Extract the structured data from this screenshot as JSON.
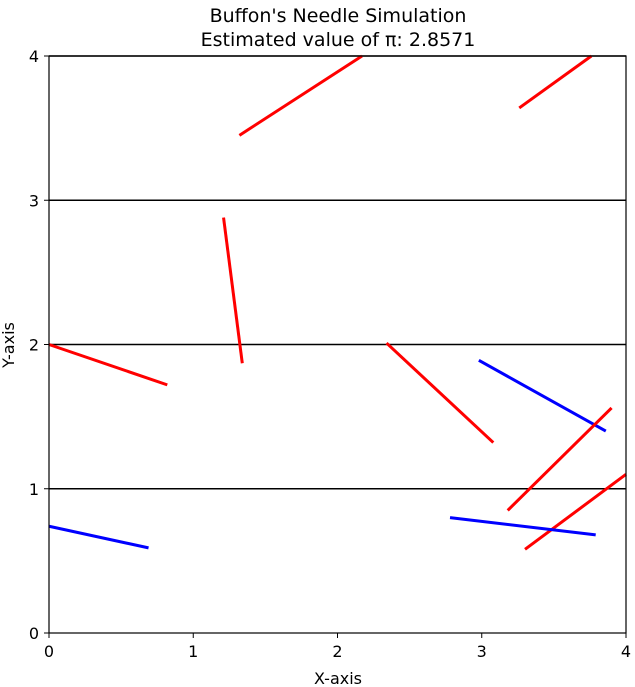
{
  "chart_data": {
    "type": "line",
    "title": "Buffon's Needle Simulation",
    "subtitle": "Estimated value of π: 2.8571",
    "xlabel": "X-axis",
    "ylabel": "Y-axis",
    "xlim": [
      0,
      4
    ],
    "ylim": [
      0,
      4
    ],
    "xticks": [
      "0",
      "1",
      "2",
      "3",
      "4"
    ],
    "yticks": [
      "0",
      "1",
      "2",
      "3",
      "4"
    ],
    "grid_lines_y": [
      1,
      2,
      3,
      4
    ],
    "colors": {
      "crossing": "#ff0000",
      "non_crossing": "#0000ff",
      "grid": "#000000"
    },
    "needles": [
      {
        "x1": 1.32,
        "y1": 3.45,
        "x2": 2.17,
        "y2": 4.0,
        "crossing": true
      },
      {
        "x1": 3.26,
        "y1": 3.64,
        "x2": 3.76,
        "y2": 4.0,
        "crossing": true
      },
      {
        "x1": 1.21,
        "y1": 2.88,
        "x2": 1.34,
        "y2": 1.87,
        "crossing": true
      },
      {
        "x1": 0.0,
        "y1": 2.0,
        "x2": 0.82,
        "y2": 1.72,
        "crossing": true
      },
      {
        "x1": 2.34,
        "y1": 2.01,
        "x2": 3.08,
        "y2": 1.32,
        "crossing": true
      },
      {
        "x1": 2.98,
        "y1": 1.89,
        "x2": 3.86,
        "y2": 1.4,
        "crossing": false
      },
      {
        "x1": 3.18,
        "y1": 0.85,
        "x2": 3.9,
        "y2": 1.56,
        "crossing": true
      },
      {
        "x1": 3.3,
        "y1": 0.58,
        "x2": 4.0,
        "y2": 1.1,
        "crossing": true
      },
      {
        "x1": 0.0,
        "y1": 0.74,
        "x2": 0.69,
        "y2": 0.59,
        "crossing": false
      },
      {
        "x1": 2.78,
        "y1": 0.8,
        "x2": 3.79,
        "y2": 0.68,
        "crossing": false
      }
    ]
  }
}
